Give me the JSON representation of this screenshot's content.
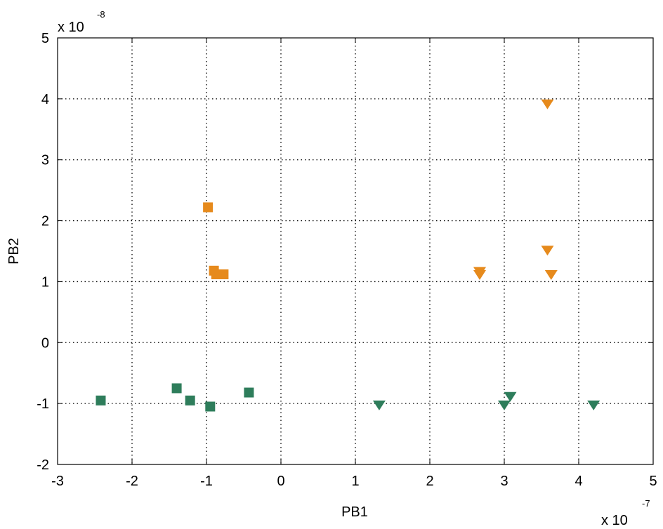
{
  "chart_data": {
    "type": "scatter",
    "title": "",
    "xlabel": "PB1",
    "ylabel": "PB2",
    "x_multiplier": "x 10",
    "x_exponent": "-7",
    "y_multiplier": "x 10",
    "y_exponent": "-8",
    "xlim": [
      -3,
      5
    ],
    "ylim": [
      -2,
      5
    ],
    "xticks": [
      -3,
      -2,
      -1,
      0,
      1,
      2,
      3,
      4,
      5
    ],
    "yticks": [
      -2,
      -1,
      0,
      1,
      2,
      3,
      4,
      5
    ],
    "xtick_labels": [
      "-3",
      "-2",
      "-1",
      "0",
      "1",
      "2",
      "3",
      "4",
      "5"
    ],
    "ytick_labels": [
      "-2",
      "-1",
      "0",
      "1",
      "2",
      "3",
      "4",
      "5"
    ],
    "grid": true,
    "grid_style": "dotted",
    "legend": "none",
    "series": [
      {
        "marker": "square",
        "color": "#e68a1c",
        "points": [
          [
            -0.98,
            2.22
          ],
          [
            -0.9,
            1.18
          ],
          [
            -0.87,
            1.12
          ],
          [
            -0.77,
            1.12
          ]
        ]
      },
      {
        "marker": "triangle-down",
        "color": "#e68a1c",
        "points": [
          [
            3.58,
            3.92
          ],
          [
            3.58,
            1.52
          ],
          [
            2.67,
            1.17
          ],
          [
            2.67,
            1.12
          ],
          [
            3.63,
            1.12
          ]
        ]
      },
      {
        "marker": "square",
        "color": "#2e7d5b",
        "points": [
          [
            -2.42,
            -0.95
          ],
          [
            -1.4,
            -0.75
          ],
          [
            -1.22,
            -0.95
          ],
          [
            -0.95,
            -1.05
          ],
          [
            -0.43,
            -0.82
          ]
        ]
      },
      {
        "marker": "triangle-down",
        "color": "#2e7d5b",
        "points": [
          [
            1.32,
            -1.02
          ],
          [
            3.0,
            -1.02
          ],
          [
            3.08,
            -0.88
          ],
          [
            4.2,
            -1.02
          ]
        ]
      }
    ]
  }
}
